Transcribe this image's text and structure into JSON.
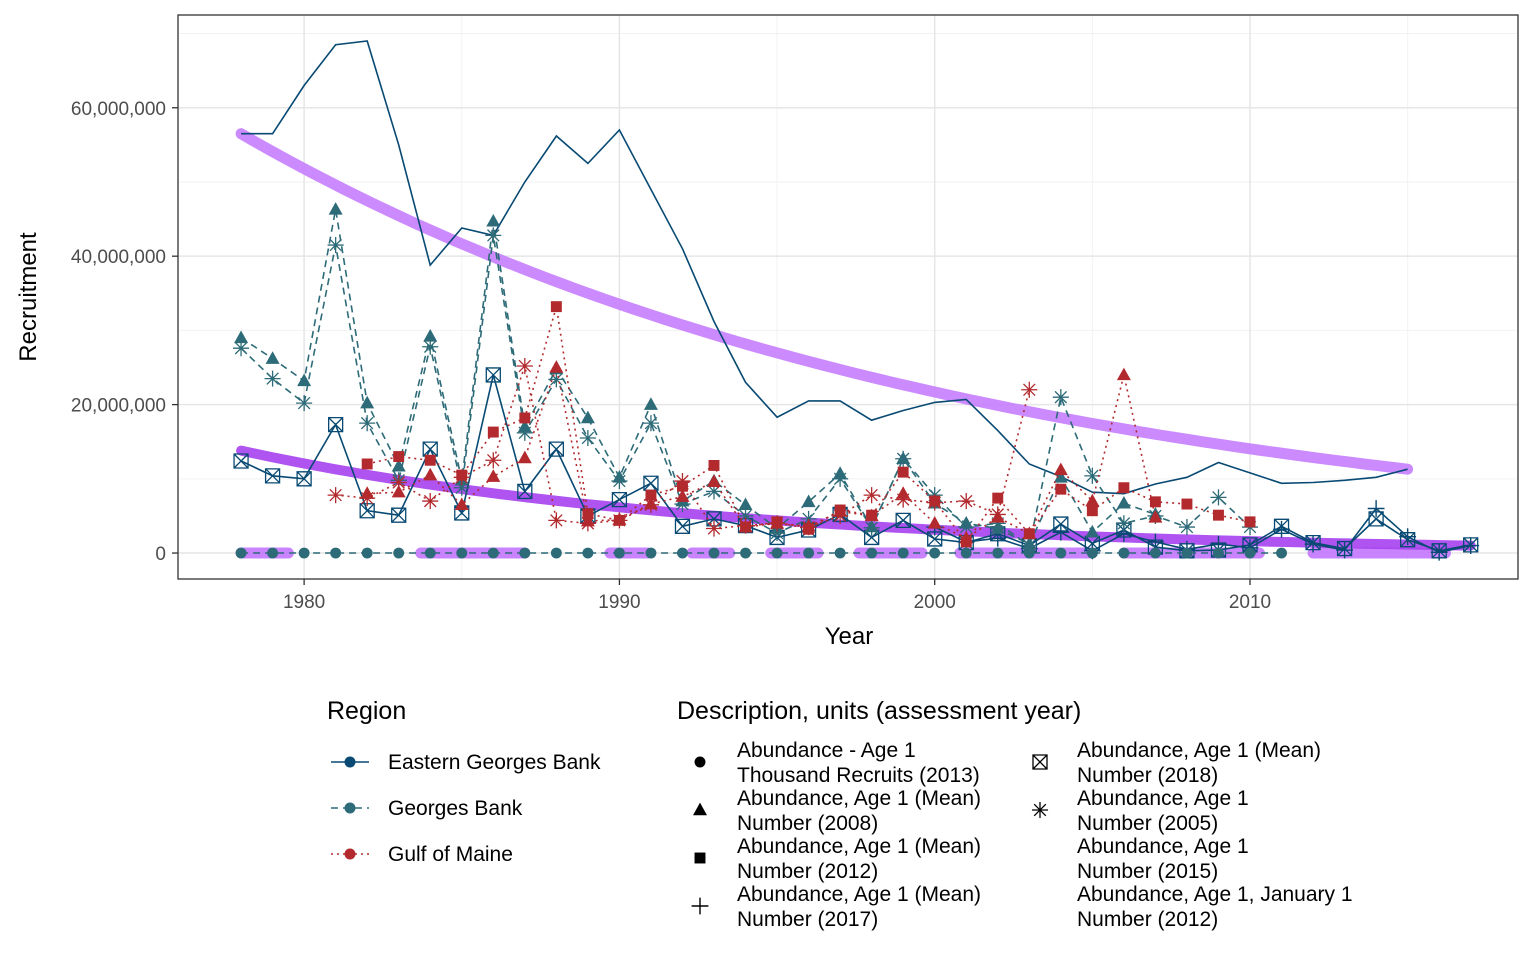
{
  "chart_data": {
    "type": "line",
    "xlabel": "Year",
    "ylabel": "Recruitment",
    "xlim": [
      1976,
      2018.5
    ],
    "ylim": [
      -3500000,
      72500000
    ],
    "x_ticks": [
      1980,
      1990,
      2000,
      2010
    ],
    "x_tick_labels": [
      "1980",
      "1990",
      "2000",
      "2010"
    ],
    "y_ticks": [
      0,
      20000000,
      40000000,
      60000000
    ],
    "y_tick_labels": [
      "0",
      "20,000,000",
      "40,000,000",
      "60,000,000"
    ],
    "grid": true,
    "legend_position": "bottom",
    "colors": {
      "Eastern Georges Bank": "#084a73",
      "Georges Bank": "#2d6b78",
      "Gulf of Maine": "#b22a2e",
      "trend_light": "#c77dff",
      "trend_dark": "#a640f0"
    },
    "region_legend": {
      "title": "Region",
      "items": [
        {
          "name": "Eastern Georges Bank",
          "linetype": "solid"
        },
        {
          "name": "Georges Bank",
          "linetype": "dashed"
        },
        {
          "name": "Gulf of Maine",
          "linetype": "dotted"
        }
      ]
    },
    "description_legend": {
      "title": "Description, units (assessment year)",
      "items": [
        {
          "shape": "circle",
          "line1": "Abundance - Age 1",
          "line2": "Thousand Recruits (2013)"
        },
        {
          "shape": "triangle",
          "line1": "Abundance, Age 1 (Mean)",
          "line2": "Number (2008)"
        },
        {
          "shape": "square",
          "line1": "Abundance, Age 1 (Mean)",
          "line2": "Number (2012)"
        },
        {
          "shape": "plus",
          "line1": "Abundance, Age 1 (Mean)",
          "line2": "Number (2017)"
        },
        {
          "shape": "boxx",
          "line1": "Abundance, Age 1 (Mean)",
          "line2": "Number (2018)"
        },
        {
          "shape": "star",
          "line1": "Abundance, Age 1",
          "line2": "Number (2005)"
        },
        {
          "shape": "none",
          "line1": "Abundance, Age 1",
          "line2": "Number (2015)"
        },
        {
          "shape": "none",
          "line1": "Abundance, Age 1, January 1",
          "line2": "Number (2012)"
        }
      ]
    },
    "series": [
      {
        "name": "Eastern Georges Bank — Number (2015)",
        "region": "Eastern Georges Bank",
        "shape": "none",
        "x": [
          1978,
          1979,
          1980,
          1981,
          1982,
          1983,
          1984,
          1985,
          1986,
          1987,
          1988,
          1989,
          1990,
          1991,
          1992,
          1993,
          1994,
          1995,
          1996,
          1997,
          1998,
          1999,
          2000,
          2001,
          2002,
          2003,
          2004,
          2005,
          2006,
          2007,
          2008,
          2009,
          2010,
          2011,
          2012,
          2013,
          2014,
          2015
        ],
        "y": [
          56500000,
          56500000,
          63000000,
          68500000,
          69000000,
          55000000,
          38800000,
          43800000,
          42800000,
          50000000,
          56200000,
          52500000,
          57000000,
          49000000,
          41000000,
          31200000,
          23000000,
          18300000,
          20500000,
          20500000,
          17900000,
          19200000,
          20300000,
          20700000,
          16500000,
          12000000,
          10300000,
          8200000,
          8000000,
          9300000,
          10200000,
          12200000,
          10800000,
          9400000,
          9500000,
          9800000,
          10200000,
          11300000
        ]
      },
      {
        "name": "Eastern Georges Bank — Number (2018)",
        "region": "Eastern Georges Bank",
        "shape": "boxx",
        "x": [
          1978,
          1979,
          1980,
          1981,
          1982,
          1983,
          1984,
          1985,
          1986,
          1987,
          1988,
          1989,
          1990,
          1991,
          1992,
          1993,
          1994,
          1995,
          1996,
          1997,
          1998,
          1999,
          2000,
          2001,
          2002,
          2003,
          2004,
          2005,
          2006,
          2007,
          2008,
          2009,
          2010,
          2011,
          2012,
          2013,
          2014,
          2015,
          2016,
          2017
        ],
        "y": [
          12400000,
          10400000,
          10000000,
          17300000,
          5700000,
          5100000,
          14000000,
          5400000,
          24000000,
          8300000,
          14000000,
          5000000,
          7200000,
          9400000,
          3600000,
          4600000,
          3700000,
          2100000,
          3100000,
          5200000,
          2100000,
          4400000,
          1900000,
          1400000,
          2600000,
          1000000,
          3900000,
          1300000,
          3100000,
          800000,
          300000,
          400000,
          1100000,
          3600000,
          1400000,
          600000,
          4600000,
          1800000,
          300000,
          1100000
        ]
      },
      {
        "name": "Eastern Georges Bank — Number (2017)",
        "region": "Eastern Georges Bank",
        "shape": "plus",
        "x": [
          2000,
          2001,
          2002,
          2003,
          2004,
          2005,
          2006,
          2007,
          2008,
          2009,
          2010,
          2011,
          2012,
          2013,
          2014,
          2015,
          2016,
          2017
        ],
        "y": [
          3500000,
          1500000,
          2000000,
          600000,
          2800000,
          300000,
          2600000,
          1500000,
          500000,
          1200000,
          700000,
          3200000,
          1200000,
          400000,
          6000000,
          2200000,
          100000,
          1000000
        ]
      },
      {
        "name": "Georges Bank — Number (2008)",
        "region": "Georges Bank",
        "shape": "triangle",
        "x": [
          1978,
          1979,
          1980,
          1981,
          1982,
          1983,
          1984,
          1985,
          1986,
          1987,
          1988,
          1989,
          1990,
          1991,
          1992,
          1993,
          1994,
          1995,
          1996,
          1997,
          1998,
          1999,
          2000,
          2001,
          2002,
          2003,
          2004,
          2005,
          2006,
          2007
        ],
        "y": [
          29000000,
          26200000,
          23200000,
          46300000,
          20200000,
          11700000,
          29200000,
          9800000,
          44700000,
          17000000,
          24800000,
          18200000,
          10200000,
          20000000,
          7000000,
          9700000,
          6500000,
          3300000,
          6900000,
          10700000,
          3500000,
          12700000,
          6700000,
          4000000,
          3300000,
          1200000,
          10200000,
          2800000,
          6700000,
          5200000
        ]
      },
      {
        "name": "Georges Bank — Number (2005)",
        "region": "Georges Bank",
        "shape": "star",
        "x": [
          1978,
          1979,
          1980,
          1981,
          1982,
          1983,
          1984,
          1985,
          1986,
          1987,
          1988,
          1989,
          1990,
          1991,
          1992,
          1993,
          1994,
          1995,
          1996,
          1997,
          1998,
          1999,
          2000,
          2001,
          2002,
          2003,
          2004,
          2005,
          2006,
          2007,
          2008,
          2009,
          2010
        ],
        "y": [
          27600000,
          23500000,
          20200000,
          41500000,
          17500000,
          9800000,
          27800000,
          8800000,
          42800000,
          16200000,
          23400000,
          15500000,
          9700000,
          17500000,
          6600000,
          8300000,
          5000000,
          2700000,
          4600000,
          10000000,
          3400000,
          12700000,
          7800000,
          3500000,
          4000000,
          1000000,
          21000000,
          10400000,
          4000000,
          5000000,
          3500000,
          7500000,
          3500000
        ]
      },
      {
        "name": "Georges Bank — Thousand Recruits (2013)",
        "region": "Georges Bank",
        "shape": "circle",
        "x": [
          1978,
          1979,
          1980,
          1981,
          1982,
          1983,
          1984,
          1985,
          1986,
          1987,
          1988,
          1989,
          1990,
          1991,
          1992,
          1993,
          1994,
          1995,
          1996,
          1997,
          1998,
          1999,
          2000,
          2001,
          2002,
          2003,
          2004,
          2005,
          2006,
          2007,
          2008,
          2009,
          2010,
          2011
        ],
        "y": [
          0,
          0,
          0,
          0,
          0,
          0,
          0,
          0,
          0,
          0,
          0,
          0,
          0,
          0,
          0,
          0,
          0,
          0,
          0,
          0,
          0,
          0,
          0,
          0,
          0,
          0,
          0,
          0,
          0,
          0,
          0,
          0,
          0,
          0
        ]
      },
      {
        "name": "Gulf of Maine — Number (2012)",
        "region": "Gulf of Maine",
        "shape": "square",
        "x": [
          1982,
          1983,
          1984,
          1985,
          1986,
          1987,
          1988,
          1989,
          1990,
          1991,
          1992,
          1993,
          1994,
          1995,
          1996,
          1997,
          1998,
          1999,
          2000,
          2001,
          2002,
          2003,
          2004,
          2005,
          2006,
          2007,
          2008,
          2009,
          2010
        ],
        "y": [
          12000000,
          13000000,
          12500000,
          10500000,
          16300000,
          18200000,
          33200000,
          5300000,
          4400000,
          7800000,
          9000000,
          11800000,
          3500000,
          4200000,
          3200000,
          5800000,
          5100000,
          10900000,
          7000000,
          1500000,
          7400000,
          2600000,
          8600000,
          5700000,
          8800000,
          6900000,
          6600000,
          5100000,
          4200000
        ]
      },
      {
        "name": "Gulf of Maine — Number (2008)",
        "region": "Gulf of Maine",
        "shape": "triangle",
        "x": [
          1982,
          1983,
          1984,
          1985,
          1986,
          1987,
          1988,
          1989,
          1990,
          1991,
          1992,
          1993,
          1994,
          1995,
          1996,
          1997,
          1998,
          1999,
          2000,
          2001,
          2002,
          2003,
          2004,
          2005,
          2006,
          2007
        ],
        "y": [
          8000000,
          8200000,
          10500000,
          6500000,
          10300000,
          12800000,
          25000000,
          4300000,
          4500000,
          6600000,
          7600000,
          9600000,
          3500000,
          4000000,
          3600000,
          5600000,
          5000000,
          8000000,
          4000000,
          2000000,
          4800000,
          2600000,
          11200000,
          7000000,
          24000000,
          4800000
        ]
      },
      {
        "name": "Gulf of Maine — Number (2005)",
        "region": "Gulf of Maine",
        "shape": "star",
        "x": [
          1981,
          1982,
          1983,
          1984,
          1985,
          1986,
          1987,
          1988,
          1989,
          1990,
          1991,
          1992,
          1993,
          1994,
          1995,
          1996,
          1997,
          1998,
          1999,
          2000,
          2001,
          2002,
          2003
        ],
        "y": [
          7800000,
          7400000,
          9500000,
          7000000,
          10200000,
          12500000,
          25200000,
          4400000,
          4000000,
          4400000,
          6500000,
          9700000,
          3300000,
          3700000,
          4000000,
          3500000,
          5000000,
          7800000,
          7200000,
          6800000,
          7000000,
          5200000,
          22000000
        ]
      }
    ],
    "trend_lines": [
      {
        "name": "trend light",
        "x_start": 1978,
        "x_end": 2015,
        "y_start": 56500000,
        "y_end": 11300000
      },
      {
        "name": "trend dark",
        "x_start": 1978,
        "x_end": 2017,
        "y_start": 13800000,
        "y_end": 1000000
      }
    ],
    "zero_bands": [
      [
        1978,
        1979.5
      ],
      [
        1983.7,
        1987
      ],
      [
        1989.7,
        1990.9
      ],
      [
        1992.3,
        1993.5
      ],
      [
        1994.8,
        1996.3
      ],
      [
        1997.6,
        1999.6
      ],
      [
        2000.8,
        2005
      ],
      [
        2006,
        2010.3
      ],
      [
        2012,
        2016.2
      ]
    ]
  }
}
